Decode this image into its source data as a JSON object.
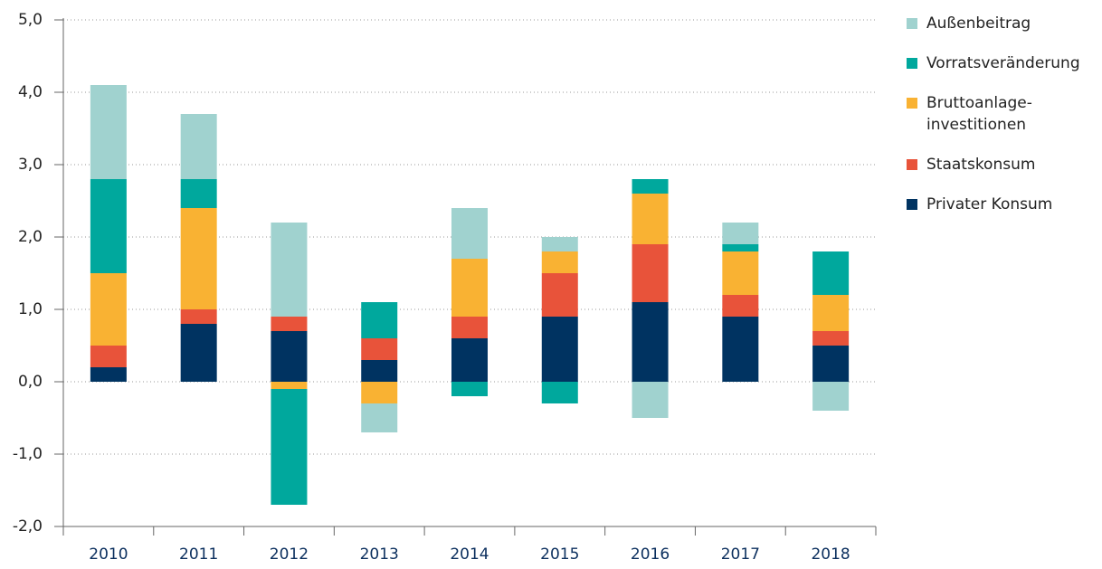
{
  "chart_data": {
    "type": "stacked_bar",
    "categories": [
      "2010",
      "2011",
      "2012",
      "2013",
      "2014",
      "2015",
      "2016",
      "2017",
      "2018"
    ],
    "series": [
      {
        "name": "Privater Konsum",
        "color": "#003361",
        "values": [
          0.2,
          0.8,
          0.7,
          0.3,
          0.6,
          0.9,
          1.1,
          0.9,
          0.5
        ]
      },
      {
        "name": "Staatskonsum",
        "color": "#e8533a",
        "values": [
          0.3,
          0.2,
          0.2,
          0.3,
          0.3,
          0.6,
          0.8,
          0.3,
          0.2
        ]
      },
      {
        "name": "Bruttoanlage-investitionen",
        "color": "#f9b233",
        "values": [
          1.0,
          1.4,
          -0.1,
          -0.3,
          0.8,
          0.3,
          0.7,
          0.6,
          0.5
        ]
      },
      {
        "name": "Vorratsveränderung",
        "color": "#00a89d",
        "values": [
          1.3,
          0.4,
          -1.6,
          0.5,
          -0.2,
          -0.3,
          0.2,
          0.1,
          0.6
        ]
      },
      {
        "name": "Außenbeitrag",
        "color": "#a0d2cf",
        "values": [
          1.3,
          0.9,
          1.3,
          -0.4,
          0.7,
          0.2,
          -0.5,
          0.3,
          -0.4
        ]
      }
    ],
    "ylim": [
      -2,
      5
    ],
    "yticks": [
      {
        "value": -2,
        "label": "-2,0"
      },
      {
        "value": -1,
        "label": "-1,0"
      },
      {
        "value": 0,
        "label": "0,0"
      },
      {
        "value": 1,
        "label": "1,0"
      },
      {
        "value": 2,
        "label": "2,0"
      },
      {
        "value": 3,
        "label": "3,0"
      },
      {
        "value": 4,
        "label": "4,0"
      },
      {
        "value": 5,
        "label": "5,0"
      }
    ],
    "grid": true,
    "legend": "right"
  }
}
